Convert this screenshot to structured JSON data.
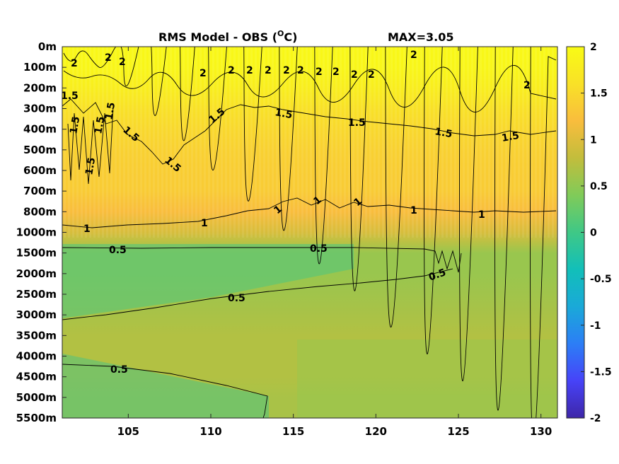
{
  "chart_data": {
    "type": "heatmap",
    "title": "RMS Model - OBS (",
    "title_unit_sup": "O",
    "title_unit_end": "C)",
    "max_annotation": "MAX=3.05",
    "x_ticks": [
      105,
      110,
      115,
      120,
      125,
      130
    ],
    "xlim": [
      101,
      131
    ],
    "y_ticks": [
      "0m",
      "100m",
      "200m",
      "300m",
      "400m",
      "500m",
      "600m",
      "700m",
      "800m",
      "1000m",
      "1500m",
      "2000m",
      "2500m",
      "3000m",
      "3500m",
      "4000m",
      "4500m",
      "5000m",
      "5500m"
    ],
    "colorbar_ticks": [
      "2",
      "1.5",
      "1",
      "0.5",
      "0",
      "-0.5",
      "-1",
      "-1.5",
      "-2"
    ],
    "clim": [
      -2,
      2
    ],
    "depth_profile": [
      {
        "depth": "0m",
        "value": 1.95
      },
      {
        "depth": "100m",
        "value": 1.92
      },
      {
        "depth": "200m",
        "value": 1.8
      },
      {
        "depth": "300m",
        "value": 1.6
      },
      {
        "depth": "400m",
        "value": 1.5
      },
      {
        "depth": "500m",
        "value": 1.42
      },
      {
        "depth": "600m",
        "value": 1.38
      },
      {
        "depth": "700m",
        "value": 1.35
      },
      {
        "depth": "800m",
        "value": 1.2
      },
      {
        "depth": "1000m",
        "value": 0.95
      },
      {
        "depth": "1500m",
        "value": 0.55
      },
      {
        "depth": "2000m",
        "value": 0.55
      },
      {
        "depth": "2500m",
        "value": 0.6
      },
      {
        "depth": "3000m",
        "value": 0.65
      },
      {
        "depth": "3500m",
        "value": 0.7
      },
      {
        "depth": "4000m",
        "value": 0.7
      },
      {
        "depth": "4500m",
        "value": 0.7
      },
      {
        "depth": "5000m",
        "value": 0.65
      },
      {
        "depth": "5500m",
        "value": 0.65
      }
    ],
    "contour_labels": [
      "2",
      "2",
      "2",
      "2",
      "2",
      "2",
      "2",
      "2",
      "2",
      "2",
      "2",
      "2",
      "2",
      "2",
      "2",
      "1.5",
      "1.5",
      "1.5",
      "1.5",
      "1.5",
      "1.5",
      "1.5",
      "1.5",
      "1.5",
      "1.5",
      "1.5",
      "1.5",
      "1",
      "1",
      "1",
      "1",
      "1",
      "1",
      "1",
      "0.5",
      "0.5",
      "0.5",
      "0.5",
      "0.5"
    ],
    "colormap": [
      "#3e26a8",
      "#4743f8",
      "#2c7ef6",
      "#1aa9d8",
      "#12bfb9",
      "#3fc886",
      "#80cb59",
      "#c2bd3c",
      "#f9bd3d",
      "#f9e127",
      "#f9fb15"
    ]
  }
}
